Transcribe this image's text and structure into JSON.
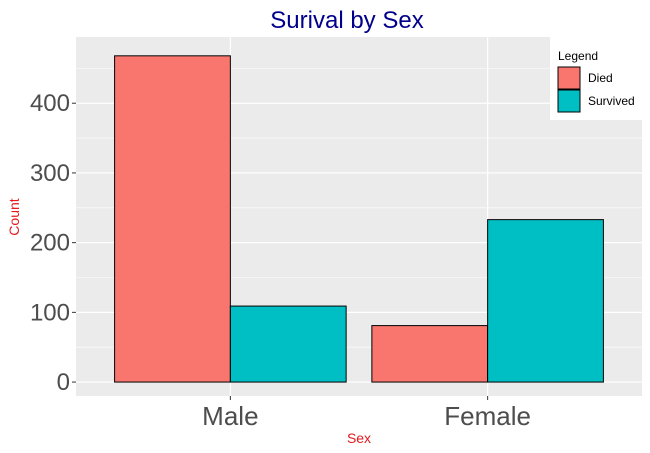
{
  "chart_data": {
    "type": "bar",
    "title": "Surival by Sex",
    "xlabel": "Sex",
    "ylabel": "Count",
    "categories": [
      "Male",
      "Female"
    ],
    "series": [
      {
        "name": "Died",
        "values": [
          468,
          81
        ],
        "color": "#F8766D"
      },
      {
        "name": "Survived",
        "values": [
          109,
          233
        ],
        "color": "#00BFC4"
      }
    ],
    "ylim": [
      -20,
      495
    ],
    "yticks": [
      0,
      100,
      200,
      300,
      400
    ],
    "grid": true,
    "legend": {
      "title": "Legend",
      "position": "top-right"
    },
    "colors": {
      "panel": "#EBEBEB",
      "grid": "#FFFFFF",
      "title": "#00008B",
      "axis_title": "#E41A1C",
      "tick": "#4D4D4D"
    }
  }
}
